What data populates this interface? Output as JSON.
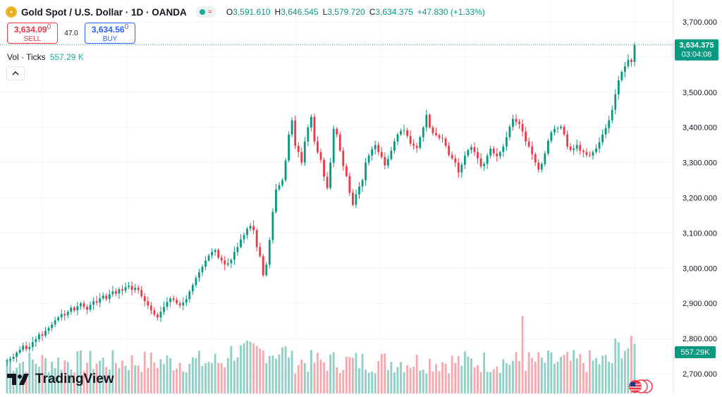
{
  "header": {
    "title": "Gold Spot / U.S. Dollar · 1D · OANDA",
    "ohlc": [
      {
        "key": "O",
        "value": "3,591.610"
      },
      {
        "key": "H",
        "value": "3,646.545"
      },
      {
        "key": "L",
        "value": "3,579.720"
      },
      {
        "key": "C",
        "value": "3,634.375"
      }
    ],
    "change": "+47.830 (+1.33%)"
  },
  "trade": {
    "sell_price": "3,634.09",
    "sell_suffix": "0",
    "sell_label": "SELL",
    "spread": "47.0",
    "buy_price": "3,634.56",
    "buy_suffix": "0",
    "buy_label": "BUY"
  },
  "volume": {
    "label": "Vol · Ticks",
    "value": "557.29 K"
  },
  "branding": {
    "name": "TradingView"
  },
  "colors": {
    "up": "#089981",
    "down": "#f23645",
    "up_volume": "#8fcfc5",
    "down_volume": "#f7a8ad",
    "grid": "#f0f3fa"
  },
  "icons": {
    "symbol": "gold-coin-icon",
    "collapse": "chevron-up-icon",
    "logo": "tradingview-logo-icon",
    "flag": "us-flag-icon"
  },
  "chart_data": {
    "type": "candlestick",
    "ylim": [
      2680,
      3740
    ],
    "y_ticks": [
      2700,
      2800,
      2900,
      3000,
      3100,
      3200,
      3300,
      3400,
      3500,
      3600,
      3700
    ],
    "y_tick_labels": [
      "2,700.000",
      "2,800.000",
      "2,900.000",
      "3,000.000",
      "3,100.000",
      "3,200.000",
      "3,300.000",
      "3,400.000",
      "3,500.000",
      "3,600.000",
      "3,700.000"
    ],
    "last_price": {
      "value": 3634.375,
      "label": "3,634.375",
      "countdown": "03:04:08"
    },
    "last_volume_label": "557.29K",
    "close": [
      2738,
      2742,
      2748,
      2760,
      2768,
      2780,
      2770,
      2776,
      2790,
      2798,
      2812,
      2808,
      2822,
      2830,
      2840,
      2852,
      2860,
      2870,
      2866,
      2876,
      2888,
      2880,
      2892,
      2900,
      2890,
      2882,
      2896,
      2906,
      2902,
      2914,
      2922,
      2912,
      2926,
      2934,
      2928,
      2940,
      2936,
      2946,
      2950,
      2938,
      2944,
      2938,
      2920,
      2906,
      2894,
      2880,
      2868,
      2860,
      2876,
      2890,
      2904,
      2914,
      2910,
      2900,
      2894,
      2902,
      2912,
      2934,
      2952,
      2972,
      2988,
      3004,
      3022,
      3036,
      3046,
      3052,
      3030,
      3022,
      3010,
      3014,
      3024,
      3046,
      3060,
      3082,
      3094,
      3112,
      3120,
      3108,
      3060,
      3034,
      2980,
      3010,
      3080,
      3160,
      3224,
      3236,
      3250,
      3306,
      3380,
      3420,
      3348,
      3330,
      3300,
      3360,
      3400,
      3430,
      3360,
      3330,
      3308,
      3260,
      3228,
      3300,
      3396,
      3380,
      3334,
      3290,
      3262,
      3214,
      3180,
      3210,
      3232,
      3250,
      3300,
      3320,
      3338,
      3350,
      3330,
      3316,
      3292,
      3310,
      3334,
      3360,
      3380,
      3390,
      3392,
      3376,
      3354,
      3348,
      3342,
      3372,
      3400,
      3436,
      3400,
      3384,
      3378,
      3370,
      3368,
      3348,
      3322,
      3312,
      3300,
      3272,
      3294,
      3320,
      3336,
      3344,
      3330,
      3312,
      3290,
      3296,
      3320,
      3340,
      3326,
      3318,
      3330,
      3346,
      3372,
      3402,
      3424,
      3416,
      3410,
      3388,
      3360,
      3346,
      3324,
      3300,
      3280,
      3296,
      3326,
      3362,
      3386,
      3396,
      3398,
      3402,
      3380,
      3346,
      3336,
      3340,
      3350,
      3334,
      3330,
      3322,
      3320,
      3330,
      3340,
      3358,
      3380,
      3398,
      3420,
      3450,
      3494,
      3534,
      3558,
      3574,
      3592,
      3586,
      3634
    ]
  }
}
